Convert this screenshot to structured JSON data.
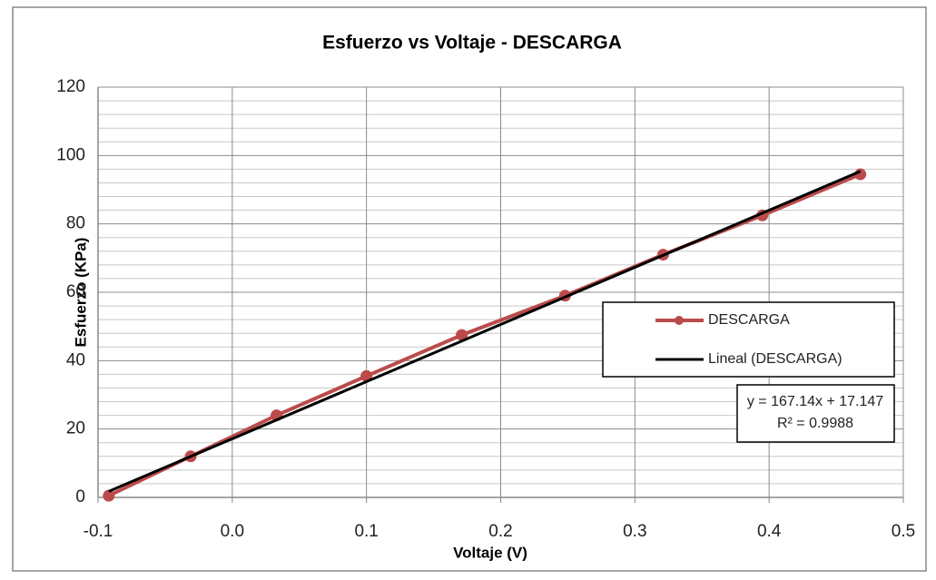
{
  "chart_data": {
    "type": "line",
    "title": "Esfuerzo vs Voltaje - DESCARGA",
    "x_label": "Voltaje (V)",
    "y_label": "Esfuerzo (KPa)",
    "x": [
      -0.092,
      -0.031,
      0.033,
      0.1,
      0.171,
      0.248,
      0.321,
      0.395,
      0.468
    ],
    "series": [
      {
        "name": "DESCARGA",
        "color": "#bb4b4b",
        "values": [
          0.5,
          12,
          24,
          35.5,
          47.5,
          59,
          71,
          82.5,
          94.5
        ]
      }
    ],
    "trendline": {
      "name": "Lineal (DESCARGA)",
      "color": "#000000",
      "slope": 167.14,
      "intercept": 17.147,
      "equation": "y = 167.14x + 17.147",
      "r2_label": "R² = 0.9988"
    },
    "xlim": [
      -0.1,
      0.5
    ],
    "xticks": [
      -0.1,
      {
        "value": 0,
        "label": "0.0"
      },
      0.1,
      0.2,
      0.3,
      0.4,
      0.5
    ],
    "ylim": [
      0,
      120
    ],
    "yticks": [
      0,
      20,
      40,
      60,
      80,
      100,
      120
    ],
    "grid": true,
    "minor_grid": true,
    "legend": "right"
  }
}
